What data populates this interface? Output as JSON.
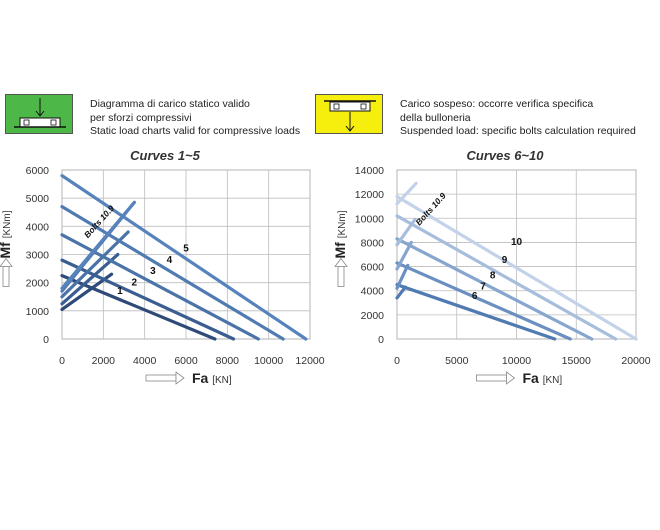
{
  "legend": {
    "compressive": {
      "line1": "Diagramma di carico statico valido",
      "line2": "per sforzi compressivi",
      "line3": "Static load charts valid for compressive loads",
      "color": "#4db848"
    },
    "suspended": {
      "line1": "Carico sospeso: occorre verifica specifica",
      "line2": "della bulloneria",
      "line3": "Suspended load:  specific bolts calculation required",
      "color": "#f6ee0c"
    }
  },
  "chart_data": [
    {
      "type": "line",
      "title": "Curves 1~5",
      "xlabel": "Fa",
      "xunit": "[KN]",
      "ylabel": "Mf",
      "yunit": "[KNm]",
      "xlim": [
        0,
        12000
      ],
      "ylim": [
        0,
        6000
      ],
      "xticks": [
        0,
        2000,
        4000,
        6000,
        8000,
        10000,
        12000
      ],
      "yticks": [
        0,
        1000,
        2000,
        3000,
        4000,
        5000,
        6000
      ],
      "grid": true,
      "bolts_label": "Bolts 10.9",
      "bolts_line": [
        [
          0,
          1100
        ],
        [
          3500,
          4850
        ]
      ],
      "series": [
        {
          "name": "1",
          "color": "#2e4a78",
          "points": [
            [
              0,
              2250
            ],
            [
              7400,
              0
            ]
          ],
          "bolts": [
            [
              0,
              1050
            ],
            [
              2400,
              2300
            ]
          ]
        },
        {
          "name": "2",
          "color": "#3a5e92",
          "points": [
            [
              0,
              2800
            ],
            [
              8300,
              0
            ]
          ],
          "bolts": [
            [
              0,
              1250
            ],
            [
              2700,
              3000
            ]
          ]
        },
        {
          "name": "3",
          "color": "#4a73a8",
          "points": [
            [
              0,
              3700
            ],
            [
              9500,
              0
            ]
          ],
          "bolts": [
            [
              0,
              1500
            ],
            [
              3200,
              3800
            ]
          ]
        },
        {
          "name": "4",
          "color": "#4f7bb2",
          "points": [
            [
              0,
              4700
            ],
            [
              10700,
              0
            ]
          ],
          "bolts": [
            [
              0,
              1700
            ],
            [
              3500,
              4850
            ]
          ]
        },
        {
          "name": "5",
          "color": "#5683bc",
          "points": [
            [
              0,
              5800
            ],
            [
              11800,
              0
            ]
          ],
          "bolts": [
            [
              0,
              1800
            ],
            [
              3500,
              4850
            ]
          ]
        }
      ],
      "labels": [
        {
          "text": "1",
          "x": 2800,
          "y": 1600
        },
        {
          "text": "2",
          "x": 3500,
          "y": 1900
        },
        {
          "text": "3",
          "x": 4400,
          "y": 2300
        },
        {
          "text": "4",
          "x": 5200,
          "y": 2700
        },
        {
          "text": "5",
          "x": 6000,
          "y": 3100
        }
      ]
    },
    {
      "type": "line",
      "title": "Curves 6~10",
      "xlabel": "Fa",
      "xunit": "[KN]",
      "ylabel": "Mf",
      "yunit": "[KNm]",
      "xlim": [
        0,
        20000
      ],
      "ylim": [
        0,
        14000
      ],
      "xticks": [
        0,
        5000,
        10000,
        15000,
        20000
      ],
      "yticks": [
        0,
        2000,
        4000,
        6000,
        8000,
        10000,
        12000,
        14000
      ],
      "grid": true,
      "bolts_label": "Bolts 10.9",
      "series": [
        {
          "name": "6",
          "color": "#4f7bb2",
          "points": [
            [
              0,
              4500
            ],
            [
              13200,
              0
            ]
          ],
          "bolts": [
            [
              0,
              3400
            ],
            [
              700,
              4300
            ]
          ]
        },
        {
          "name": "7",
          "color": "#6a8fc0",
          "points": [
            [
              0,
              6300
            ],
            [
              14500,
              0
            ]
          ],
          "bolts": [
            [
              0,
              4200
            ],
            [
              900,
              6100
            ]
          ]
        },
        {
          "name": "8",
          "color": "#86a6cf",
          "points": [
            [
              0,
              8300
            ],
            [
              16300,
              0
            ]
          ],
          "bolts": [
            [
              0,
              5800
            ],
            [
              1200,
              8000
            ]
          ]
        },
        {
          "name": "9",
          "color": "#a6bddc",
          "points": [
            [
              0,
              10200
            ],
            [
              18300,
              0
            ]
          ],
          "bolts": [
            [
              0,
              7800
            ],
            [
              1500,
              9900
            ]
          ]
        },
        {
          "name": "10",
          "color": "#c2d2e8",
          "points": [
            [
              0,
              11800
            ],
            [
              20000,
              0
            ]
          ],
          "bolts": [
            [
              0,
              11200
            ],
            [
              1600,
              12900
            ]
          ]
        }
      ],
      "labels": [
        {
          "text": "6",
          "x": 6500,
          "y": 3300
        },
        {
          "text": "7",
          "x": 7200,
          "y": 4100
        },
        {
          "text": "8",
          "x": 8000,
          "y": 5000
        },
        {
          "text": "9",
          "x": 9000,
          "y": 6300
        },
        {
          "text": "10",
          "x": 10000,
          "y": 7800
        }
      ]
    }
  ]
}
